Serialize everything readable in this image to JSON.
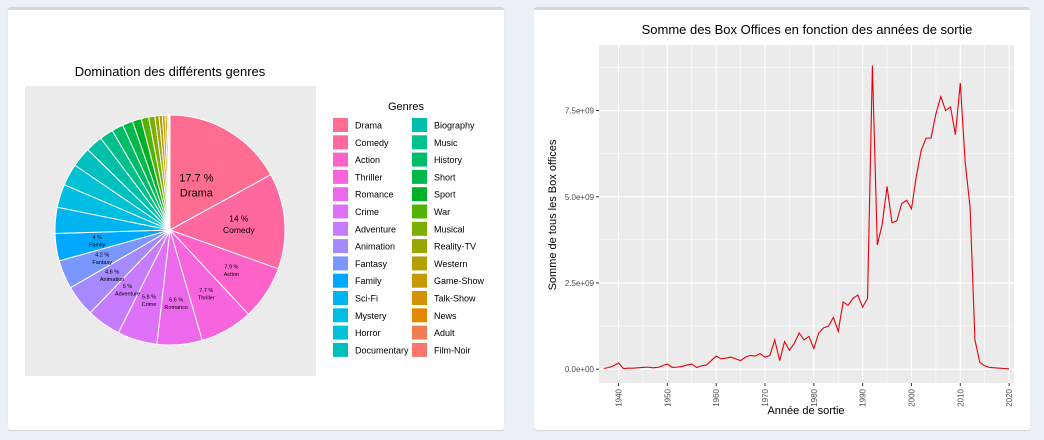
{
  "colors": {
    "panel_background": "#ecf0f5",
    "plot_background": "#ebebeb",
    "grid": "#ffffff",
    "line": "#e8000b"
  },
  "chart_data": [
    {
      "type": "pie",
      "title": "Domination des différents genres",
      "legend_title": "Genres",
      "legend_position": "right",
      "slices": [
        {
          "label": "Drama",
          "value": 17.7,
          "pct_text": "17.7 %",
          "color": "#ff6c91"
        },
        {
          "label": "Comedy",
          "value": 14.0,
          "pct_text": "14 %",
          "color": "#ff689f"
        },
        {
          "label": "Action",
          "value": 7.9,
          "pct_text": "7.9 %",
          "color": "#fe61c7"
        },
        {
          "label": "Thriller",
          "value": 7.7,
          "pct_text": "7.7 %",
          "color": "#f665dd"
        },
        {
          "label": "Romance",
          "value": 6.6,
          "pct_text": "6.6 %",
          "color": "#ec69ec"
        },
        {
          "label": "Crime",
          "value": 5.8,
          "pct_text": "5.8 %",
          "color": "#de71f8"
        },
        {
          "label": "Adventure",
          "value": 5.0,
          "pct_text": "5 %",
          "color": "#c77cff"
        },
        {
          "label": "Animation",
          "value": 4.6,
          "pct_text": "4.6 %",
          "color": "#a58aff"
        },
        {
          "label": "Fantasy",
          "value": 4.2,
          "pct_text": "4.2 %",
          "color": "#7997ff"
        },
        {
          "label": "Family",
          "value": 4.0,
          "pct_text": "4 %",
          "color": "#00a8ff"
        },
        {
          "label": "Sci-Fi",
          "value": 3.8,
          "pct_text": "",
          "color": "#00b4f0"
        },
        {
          "label": "Mystery",
          "value": 3.4,
          "pct_text": "",
          "color": "#00bde4"
        },
        {
          "label": "Horror",
          "value": 3.2,
          "pct_text": "",
          "color": "#00c1d5"
        },
        {
          "label": "Documentary",
          "value": 2.9,
          "pct_text": "",
          "color": "#00c0bf"
        },
        {
          "label": "Biography",
          "value": 2.5,
          "pct_text": "",
          "color": "#00bfa8"
        },
        {
          "label": "Music",
          "value": 2.0,
          "pct_text": "",
          "color": "#00c08b"
        },
        {
          "label": "History",
          "value": 1.7,
          "pct_text": "",
          "color": "#00bc6a"
        },
        {
          "label": "Short",
          "value": 1.5,
          "pct_text": "",
          "color": "#00b94a"
        },
        {
          "label": "Sport",
          "value": 1.3,
          "pct_text": "",
          "color": "#00b026"
        },
        {
          "label": "War",
          "value": 1.1,
          "pct_text": "",
          "color": "#53b400"
        },
        {
          "label": "Musical",
          "value": 0.9,
          "pct_text": "",
          "color": "#7cae00"
        },
        {
          "label": "Reality-TV",
          "value": 0.6,
          "pct_text": "",
          "color": "#98a600"
        },
        {
          "label": "Western",
          "value": 0.5,
          "pct_text": "",
          "color": "#b59f00"
        },
        {
          "label": "Game-Show",
          "value": 0.4,
          "pct_text": "",
          "color": "#c49a00"
        },
        {
          "label": "Talk-Show",
          "value": 0.3,
          "pct_text": "",
          "color": "#d39200"
        },
        {
          "label": "News",
          "value": 0.2,
          "pct_text": "",
          "color": "#e38900"
        },
        {
          "label": "Adult",
          "value": 0.1,
          "pct_text": "",
          "color": "#f07e52"
        },
        {
          "label": "Film-Noir",
          "value": 0.1,
          "pct_text": "",
          "color": "#f8766d"
        }
      ]
    },
    {
      "type": "line",
      "title": "Somme des Box Offices en fonction des années de sortie",
      "xlabel": "Année de sortie",
      "ylabel": "Somme de tous les Box offices",
      "xlim": [
        1936,
        2021
      ],
      "ylim": [
        -400000000,
        9400000000
      ],
      "xticks": [
        1940,
        1950,
        1960,
        1970,
        1980,
        1990,
        2000,
        2010,
        2020
      ],
      "yticks": [
        {
          "value": 0,
          "label": "0.0e+00"
        },
        {
          "value": 2500000000,
          "label": "2.5e+09"
        },
        {
          "value": 5000000000,
          "label": "5.0e+09"
        },
        {
          "value": 7500000000,
          "label": "7.5e+09"
        }
      ],
      "x": [
        1937,
        1938,
        1939,
        1940,
        1941,
        1942,
        1943,
        1944,
        1945,
        1946,
        1947,
        1948,
        1949,
        1950,
        1951,
        1952,
        1953,
        1954,
        1955,
        1956,
        1957,
        1958,
        1959,
        1960,
        1961,
        1962,
        1963,
        1964,
        1965,
        1966,
        1967,
        1968,
        1969,
        1970,
        1971,
        1972,
        1973,
        1974,
        1975,
        1976,
        1977,
        1978,
        1979,
        1980,
        1981,
        1982,
        1983,
        1984,
        1985,
        1986,
        1987,
        1988,
        1989,
        1990,
        1991,
        1992,
        1993,
        1994,
        1995,
        1996,
        1997,
        1998,
        1999,
        2000,
        2001,
        2002,
        2003,
        2004,
        2005,
        2006,
        2007,
        2008,
        2009,
        2010,
        2011,
        2012,
        2013,
        2014,
        2015,
        2016,
        2017,
        2018,
        2019,
        2020
      ],
      "y": [
        0.02,
        0.05,
        0.1,
        0.18,
        0.02,
        0.03,
        0.03,
        0.04,
        0.05,
        0.06,
        0.04,
        0.05,
        0.1,
        0.15,
        0.05,
        0.06,
        0.08,
        0.12,
        0.15,
        0.05,
        0.1,
        0.12,
        0.25,
        0.38,
        0.3,
        0.32,
        0.35,
        0.3,
        0.25,
        0.35,
        0.4,
        0.38,
        0.45,
        0.35,
        0.4,
        0.85,
        0.25,
        0.8,
        0.55,
        0.75,
        1.05,
        0.85,
        0.95,
        0.6,
        1.05,
        1.2,
        1.25,
        1.5,
        1.1,
        1.95,
        1.85,
        2.05,
        2.15,
        1.8,
        2.05,
        8.8,
        3.6,
        4.2,
        5.3,
        4.25,
        4.3,
        4.8,
        4.9,
        4.65,
        5.6,
        6.35,
        6.7,
        6.7,
        7.4,
        7.9,
        7.5,
        7.6,
        6.8,
        8.3,
        6.0,
        4.7,
        0.85,
        0.2,
        0.1,
        0.05,
        0.04,
        0.03,
        0.02,
        0.01
      ]
    }
  ]
}
